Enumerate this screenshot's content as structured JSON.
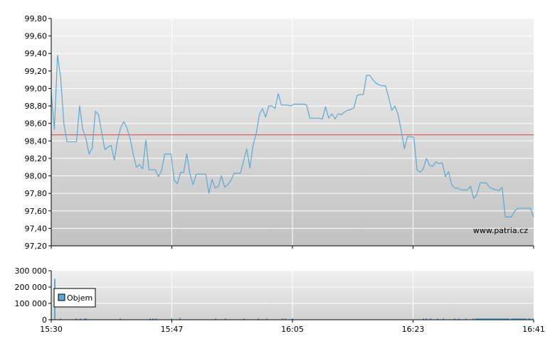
{
  "chart_data": [
    {
      "type": "line",
      "name": "price",
      "x_ticks": [
        "15:30",
        "15:47",
        "16:05",
        "16:23",
        "16:41"
      ],
      "y_ticks": [
        "97,20",
        "97,40",
        "97,60",
        "97,80",
        "98,00",
        "98,20",
        "98,40",
        "98,60",
        "98,80",
        "99,00",
        "99,20",
        "99,40",
        "99,60",
        "99,80"
      ],
      "ylim": [
        97.2,
        99.8
      ],
      "reference_line": 98.47,
      "watermark": "www.patria.cz",
      "grid": true,
      "colors": {
        "line": "#5aa9d6",
        "reference": "#e04040",
        "grid": "#ffffff",
        "background_top": "#f0f0f0",
        "background_bottom": "#c4c4c4"
      },
      "values": [
        98.95,
        98.53,
        99.38,
        99.12,
        98.6,
        98.39,
        98.39,
        98.39,
        98.39,
        98.8,
        98.53,
        98.43,
        98.25,
        98.32,
        98.74,
        98.7,
        98.5,
        98.3,
        98.33,
        98.35,
        98.18,
        98.4,
        98.55,
        98.62,
        98.55,
        98.43,
        98.25,
        98.1,
        98.13,
        98.08,
        98.41,
        98.07,
        98.07,
        98.07,
        97.99,
        98.06,
        98.25,
        98.25,
        98.25,
        97.95,
        97.91,
        98.04,
        98.04,
        98.25,
        98.02,
        97.9,
        98.02,
        98.02,
        98.02,
        98.02,
        97.8,
        97.96,
        97.86,
        97.88,
        98.0,
        97.87,
        97.9,
        97.95,
        98.03,
        98.03,
        98.03,
        98.17,
        98.31,
        98.09,
        98.35,
        98.48,
        98.7,
        98.77,
        98.67,
        98.8,
        98.8,
        98.77,
        98.94,
        98.81,
        98.81,
        98.81,
        98.8,
        98.82,
        98.82,
        98.82,
        98.82,
        98.81,
        98.66,
        98.66,
        98.66,
        98.66,
        98.65,
        98.79,
        98.66,
        98.71,
        98.65,
        98.71,
        98.7,
        98.73,
        98.75,
        98.76,
        98.78,
        98.92,
        98.93,
        98.93,
        99.15,
        99.15,
        99.1,
        99.06,
        99.04,
        99.03,
        99.03,
        98.9,
        98.75,
        98.8,
        98.7,
        98.52,
        98.31,
        98.45,
        98.45,
        98.44,
        98.07,
        98.04,
        98.08,
        98.2,
        98.12,
        98.11,
        98.16,
        98.14,
        98.15,
        97.99,
        98.05,
        97.9,
        97.86,
        97.86,
        97.84,
        97.84,
        97.84,
        97.88,
        97.74,
        97.79,
        97.92,
        97.92,
        97.92,
        97.87,
        97.85,
        97.84,
        97.83,
        97.87,
        97.53,
        97.53,
        97.53,
        97.6,
        97.63,
        97.63,
        97.63,
        97.63,
        97.63,
        97.53
      ]
    },
    {
      "type": "bar",
      "name": "volume",
      "x_ticks": [
        "15:30",
        "15:47",
        "16:05",
        "16:23",
        "16:41"
      ],
      "y_ticks": [
        "0",
        "100 000",
        "200 000",
        "300 000"
      ],
      "ylim": [
        0,
        300000
      ],
      "legend": "Objem",
      "legend_position": "left",
      "grid": true,
      "colors": {
        "bar": "#5aa9d6",
        "grid": "#ffffff"
      },
      "values": [
        0,
        0,
        250000,
        0,
        0,
        0,
        7000,
        0,
        0,
        0,
        0,
        0,
        0,
        0,
        0,
        0,
        0,
        8000,
        0,
        0,
        8000,
        0,
        0,
        9000,
        8000,
        0,
        0,
        0,
        0,
        0,
        0,
        0,
        0,
        0,
        0,
        0,
        0,
        0,
        0,
        0,
        0,
        0,
        0,
        0,
        0,
        0,
        0,
        0,
        8000,
        0,
        0,
        0,
        0,
        0,
        0,
        0,
        0,
        0,
        0,
        0,
        0,
        0,
        0,
        0,
        0,
        0,
        0,
        0,
        0,
        8000,
        0,
        7000,
        0,
        8000,
        0,
        0,
        0,
        0,
        0,
        0,
        0,
        0,
        0,
        0,
        9000,
        0,
        0,
        0,
        0,
        0,
        12000,
        0,
        0,
        0,
        0,
        0,
        0,
        0,
        0,
        0,
        0,
        0,
        0,
        0,
        0,
        0,
        0,
        0,
        0,
        0,
        0,
        0,
        0,
        0,
        0,
        8000,
        0,
        0,
        0,
        0,
        0,
        0,
        9000,
        0,
        0,
        0,
        0,
        0,
        0,
        0,
        0,
        0,
        0,
        0,
        0,
        8000,
        0,
        0,
        0,
        0,
        0,
        0,
        0,
        0,
        0,
        8000,
        0,
        0,
        0,
        0,
        0,
        8000,
        0,
        0,
        0,
        0,
        0,
        0,
        0,
        0,
        0,
        0,
        8000,
        0,
        8000,
        0,
        0,
        0,
        0,
        8000,
        0,
        0,
        0,
        0,
        0,
        0,
        0,
        0,
        0,
        0,
        0,
        0,
        0,
        0,
        0,
        0,
        0,
        0,
        0,
        0,
        0,
        0,
        0,
        0,
        0,
        0,
        0,
        0,
        0,
        0,
        0,
        0,
        0,
        0,
        0,
        0,
        0,
        0,
        0,
        0,
        0,
        0,
        0,
        0,
        0,
        0,
        0,
        0,
        0,
        0,
        0,
        0,
        0,
        0,
        0,
        0,
        0,
        0,
        0,
        0,
        0,
        0,
        0,
        0,
        0,
        0,
        0,
        0,
        0,
        0,
        0,
        0,
        0,
        0,
        0,
        0,
        0,
        0,
        0,
        0,
        0,
        0,
        0,
        0,
        0,
        0,
        0,
        0,
        0,
        0,
        0,
        8000,
        0,
        8000,
        0,
        0,
        8000,
        0,
        0,
        0,
        0,
        8000,
        0,
        0,
        0,
        8000,
        0,
        0,
        0,
        0,
        0,
        0,
        0,
        8000,
        0,
        0,
        8000,
        0,
        0,
        0,
        0,
        8000,
        0,
        0,
        0,
        0,
        8000,
        0,
        8000,
        8000,
        8000,
        8000,
        8000,
        8000,
        8000,
        8000,
        8000,
        8000,
        8000,
        8000,
        8000,
        8000,
        8000,
        8000,
        8000,
        8000,
        8000,
        8000,
        8000,
        8000,
        8000,
        8000,
        0,
        8000,
        8000,
        8000,
        8000,
        8000,
        8000,
        8000,
        8000,
        8000,
        8000,
        8000,
        0,
        8000,
        8000,
        0,
        8000
      ]
    }
  ]
}
